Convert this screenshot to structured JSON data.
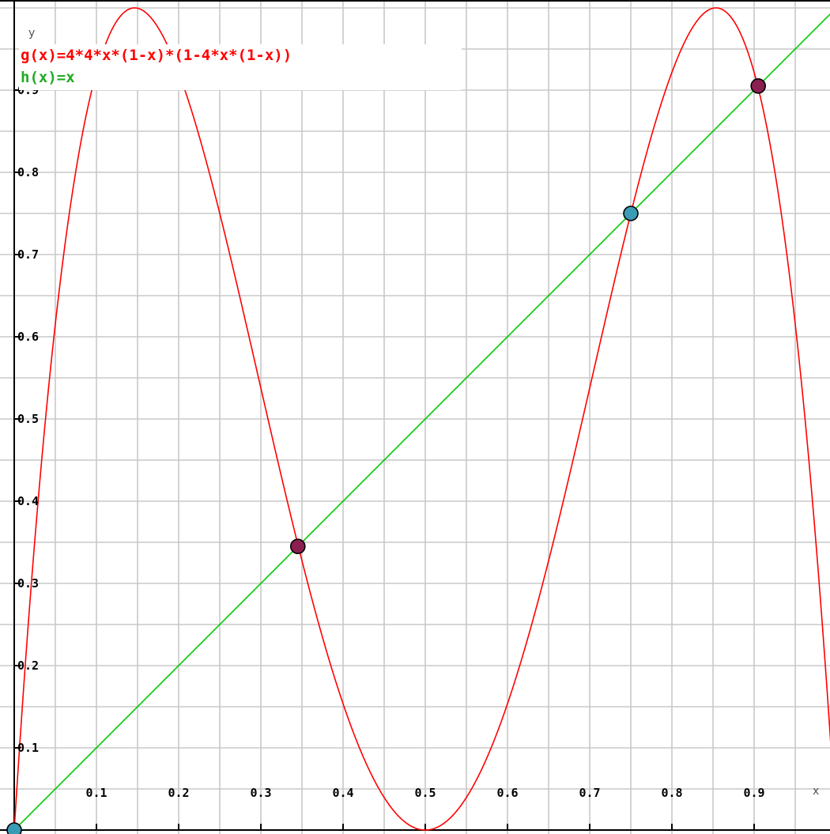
{
  "chart_data": {
    "type": "line",
    "xlabel": "x",
    "ylabel": "y",
    "xlim": [
      0,
      1
    ],
    "ylim": [
      0,
      1
    ],
    "grid": true,
    "grid_minor_step": 0.05,
    "x_ticks": [
      "0.1",
      "0.2",
      "0.3",
      "0.4",
      "0.5",
      "0.6",
      "0.7",
      "0.8",
      "0.9"
    ],
    "y_ticks": [
      "0.1",
      "0.2",
      "0.3",
      "0.4",
      "0.5",
      "0.6",
      "0.7",
      "0.8",
      "0.9"
    ],
    "legend_position": "top-left",
    "series": [
      {
        "name": "g(x)=4*4*x*(1-x)*(1-4*x*(1-x))",
        "type": "function",
        "expression": "16*x*(1-x)*(1-4*x*(1-x))",
        "color": "#ff0000"
      },
      {
        "name": "h(x)=x",
        "type": "function",
        "expression": "x",
        "color": "#00cc00"
      }
    ],
    "points": [
      {
        "x": 0.0,
        "y": 0.0,
        "color": "#3a9bb5"
      },
      {
        "x": 0.345,
        "y": 0.345,
        "color": "#8b2050"
      },
      {
        "x": 0.75,
        "y": 0.75,
        "color": "#3a9bb5"
      },
      {
        "x": 0.905,
        "y": 0.905,
        "color": "#8b2050"
      }
    ]
  }
}
